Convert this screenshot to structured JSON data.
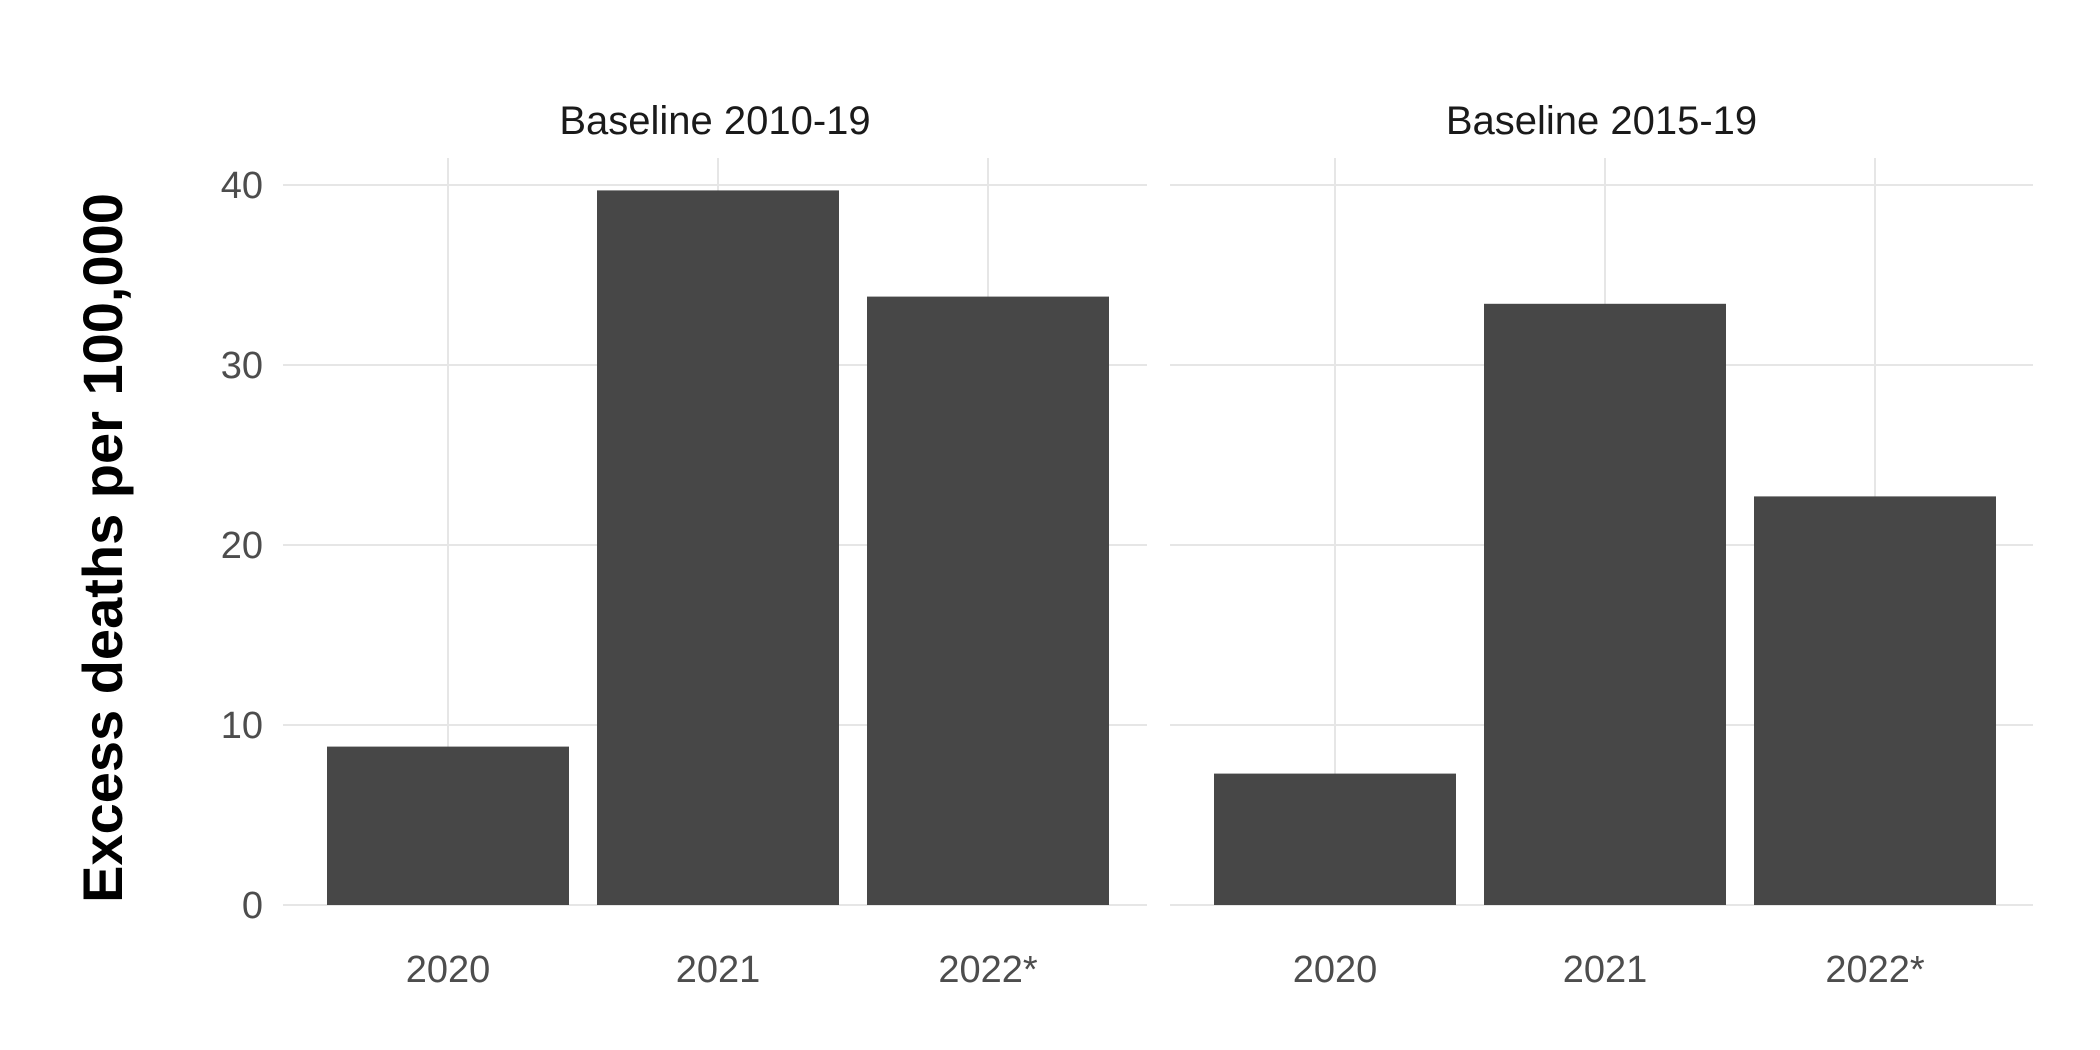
{
  "chart_data": {
    "type": "bar",
    "ylabel": "Excess deaths per 100,000",
    "xlabel": "",
    "ylim": [
      0,
      41.5
    ],
    "yticks": [
      0,
      10,
      20,
      30,
      40
    ],
    "grid": true,
    "legend": "none",
    "bar_color": "#474747",
    "panels": [
      {
        "title": "Baseline 2010-19",
        "categories": [
          "2020",
          "2021",
          "2022*"
        ],
        "values": [
          8.8,
          39.7,
          33.8
        ]
      },
      {
        "title": "Baseline 2015-19",
        "categories": [
          "2020",
          "2021",
          "2022*"
        ],
        "values": [
          7.3,
          33.4,
          22.7
        ]
      }
    ]
  }
}
